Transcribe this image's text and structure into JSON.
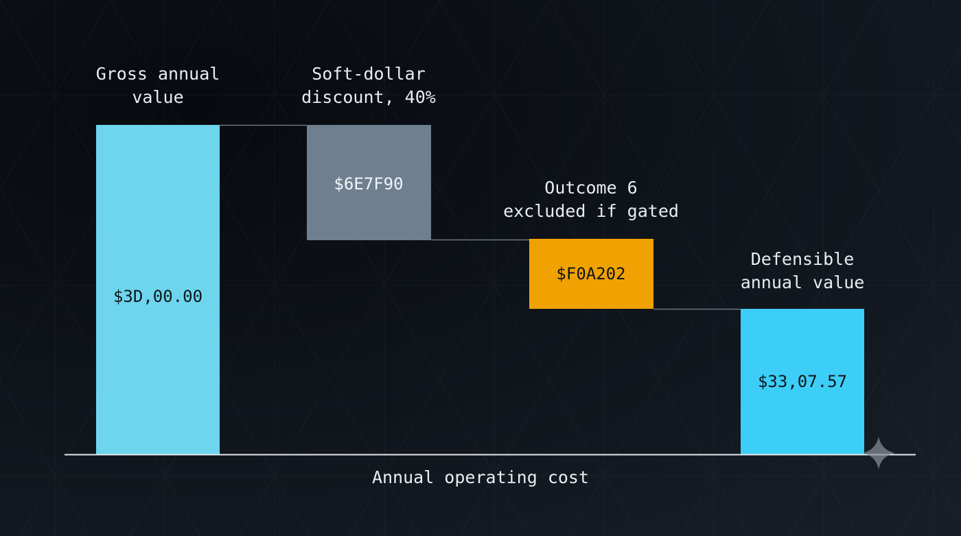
{
  "steps": [
    {
      "title_lines": [
        "Gross annual",
        "value"
      ],
      "label": "$3D,00.00"
    },
    {
      "title_lines": [
        "Soft-dollar",
        "discount, 40%"
      ],
      "label": "$6E7F90"
    },
    {
      "title_lines": [
        "Outcome 6",
        "excluded if gated"
      ],
      "label": "$F0A202"
    },
    {
      "title_lines": [
        "Defensible",
        "annual value"
      ],
      "label": "$33,07.57"
    }
  ],
  "axis_label": "Annual operating cost"
}
